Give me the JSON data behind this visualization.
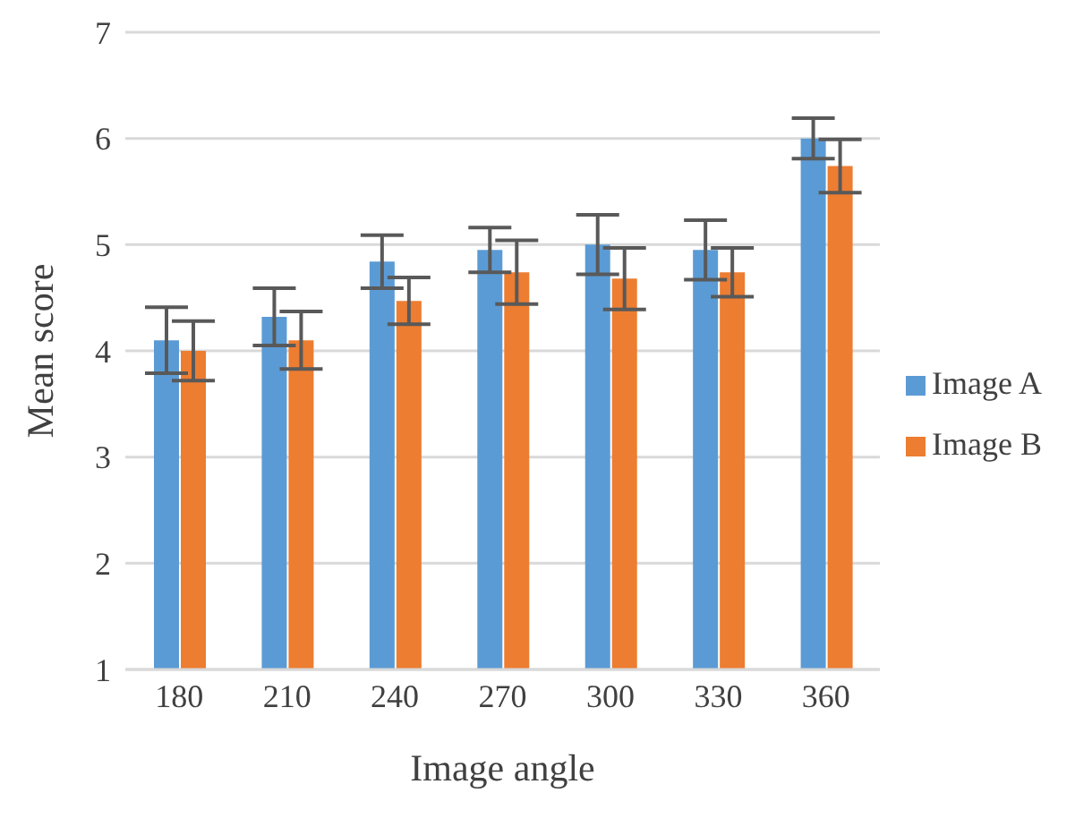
{
  "chart_data": {
    "type": "bar",
    "xlabel": "Image angle",
    "ylabel": "Mean score",
    "categories": [
      "180",
      "210",
      "240",
      "270",
      "300",
      "330",
      "360"
    ],
    "series": [
      {
        "name": "Image A",
        "color": "#5b9bd5",
        "values": [
          4.1,
          4.32,
          4.84,
          4.95,
          5.0,
          4.95,
          6.0
        ],
        "errors": [
          0.31,
          0.27,
          0.25,
          0.21,
          0.28,
          0.28,
          0.19
        ]
      },
      {
        "name": "Image B",
        "color": "#ed7d31",
        "values": [
          4.0,
          4.1,
          4.47,
          4.74,
          4.68,
          4.74,
          5.74
        ],
        "errors": [
          0.28,
          0.27,
          0.22,
          0.3,
          0.29,
          0.23,
          0.25
        ]
      }
    ],
    "ylim": [
      1,
      7
    ],
    "yticks": [
      1,
      2,
      3,
      4,
      5,
      6,
      7
    ],
    "grid": "y",
    "legend": "right"
  }
}
